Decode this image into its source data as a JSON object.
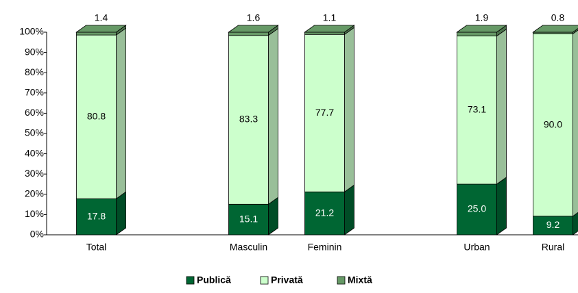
{
  "chart_data": {
    "type": "bar",
    "stacked": true,
    "categories": [
      "Total",
      null,
      "Masculin",
      "Feminin",
      null,
      "Urban",
      "Rural"
    ],
    "series": [
      {
        "name": "Publică",
        "color": "#006633",
        "values": [
          17.8,
          null,
          15.1,
          21.2,
          null,
          25.0,
          9.2
        ],
        "value_labels": [
          "17.8",
          null,
          "15.1",
          "21.2",
          null,
          "25.0",
          "9.2"
        ]
      },
      {
        "name": "Privată",
        "color": "#ccffcc",
        "values": [
          80.8,
          null,
          83.3,
          77.7,
          null,
          73.1,
          90.0
        ],
        "value_labels": [
          "80.8",
          null,
          "83.3",
          "77.7",
          null,
          "73.1",
          "90.0"
        ]
      },
      {
        "name": "Mixtă",
        "color": "#669966",
        "values": [
          1.4,
          null,
          1.6,
          1.1,
          null,
          1.9,
          0.8
        ],
        "value_labels": [
          "1.4",
          null,
          "1.6",
          "1.1",
          null,
          "1.9",
          "0.8"
        ]
      }
    ],
    "ylim": [
      0,
      100
    ],
    "yticks": [
      {
        "value": 0,
        "label": "0%"
      },
      {
        "value": 10,
        "label": "10%"
      },
      {
        "value": 20,
        "label": "20%"
      },
      {
        "value": 30,
        "label": "30%"
      },
      {
        "value": 40,
        "label": "40%"
      },
      {
        "value": 50,
        "label": "50%"
      },
      {
        "value": 60,
        "label": "60%"
      },
      {
        "value": 70,
        "label": "70%"
      },
      {
        "value": 80,
        "label": "80%"
      },
      {
        "value": 90,
        "label": "90%"
      },
      {
        "value": 100,
        "label": "100%"
      }
    ],
    "legend": "bottom"
  }
}
